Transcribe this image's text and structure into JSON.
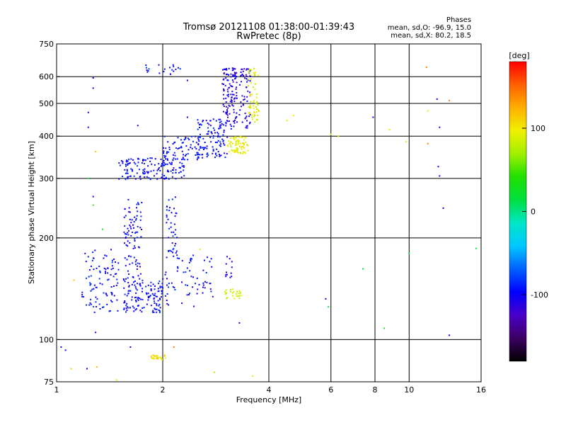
{
  "chart_data": {
    "type": "scatter",
    "title": "Tromsø 20121108 01:38:00-01:39:43",
    "subtitle": "RwPretec (8p)",
    "xlabel": "Frequency [MHz]",
    "ylabel": "Stationary phase Virtual Height [km]",
    "x_scale": "log",
    "y_scale": "log",
    "xlim": [
      1,
      16
    ],
    "ylim": [
      75,
      750
    ],
    "x_ticks": [
      1,
      2,
      4,
      6,
      8,
      10,
      16
    ],
    "y_ticks": [
      75,
      100,
      200,
      300,
      400,
      500,
      600,
      750
    ],
    "grid": true,
    "stats": {
      "header": "Phases",
      "line1": "mean, sd,O: -96.9, 15.0",
      "line2": "mean, sd,X:  80.2, 18.5"
    },
    "colorbar": {
      "label": "[deg]",
      "min": -180,
      "max": 180,
      "ticks": [
        100,
        0,
        -100
      ],
      "colors": [
        "#000000",
        "#3d0063",
        "#4a00c8",
        "#0000ff",
        "#0060ff",
        "#00c8ff",
        "#00e6c8",
        "#00e040",
        "#20e000",
        "#a0f000",
        "#f0f000",
        "#ffb000",
        "#ff6000",
        "#ff0000"
      ]
    },
    "clusters": [
      {
        "f_min": 1.18,
        "f_max": 1.5,
        "h_min": 120,
        "h_max": 185,
        "count": 95,
        "phase": -95
      },
      {
        "f_min": 1.55,
        "f_max": 2.0,
        "h_min": 120,
        "h_max": 150,
        "count": 130,
        "phase": -97
      },
      {
        "f_min": 1.55,
        "f_max": 1.75,
        "h_min": 150,
        "h_max": 260,
        "count": 90,
        "phase": -98
      },
      {
        "f_min": 2.0,
        "f_max": 2.8,
        "h_min": 125,
        "h_max": 180,
        "count": 70,
        "phase": -96
      },
      {
        "f_min": 2.05,
        "f_max": 2.2,
        "h_min": 180,
        "h_max": 270,
        "count": 40,
        "phase": -95
      },
      {
        "f_min": 1.5,
        "f_max": 2.3,
        "h_min": 298,
        "h_max": 345,
        "count": 150,
        "phase": -96
      },
      {
        "f_min": 2.0,
        "f_max": 2.6,
        "h_min": 340,
        "h_max": 400,
        "count": 70,
        "phase": -95
      },
      {
        "f_min": 2.5,
        "f_max": 3.05,
        "h_min": 345,
        "h_max": 450,
        "count": 110,
        "phase": -96
      },
      {
        "f_min": 2.95,
        "f_max": 3.25,
        "h_min": 420,
        "h_max": 640,
        "count": 120,
        "phase": -110
      },
      {
        "f_min": 3.3,
        "f_max": 3.55,
        "h_min": 420,
        "h_max": 640,
        "count": 60,
        "phase": -110
      },
      {
        "f_min": 3.05,
        "f_max": 3.5,
        "h_min": 355,
        "h_max": 400,
        "count": 70,
        "phase": 95
      },
      {
        "f_min": 3.5,
        "f_max": 3.75,
        "h_min": 440,
        "h_max": 640,
        "count": 60,
        "phase": 90
      },
      {
        "f_min": 1.85,
        "f_max": 2.05,
        "h_min": 87,
        "h_max": 90,
        "count": 30,
        "phase": 100
      },
      {
        "f_min": 3.0,
        "f_max": 3.35,
        "h_min": 132,
        "h_max": 142,
        "count": 25,
        "phase": 85
      },
      {
        "f_min": 3.0,
        "f_max": 3.15,
        "h_min": 150,
        "h_max": 182,
        "count": 12,
        "phase": -110
      },
      {
        "f_min": 1.75,
        "f_max": 2.25,
        "h_min": 610,
        "h_max": 650,
        "count": 20,
        "phase": -95
      }
    ],
    "points": [
      {
        "x": 1.03,
        "y": 95,
        "phase": -95
      },
      {
        "x": 1.06,
        "y": 93,
        "phase": -100
      },
      {
        "x": 1.1,
        "y": 82,
        "phase": 110
      },
      {
        "x": 1.22,
        "y": 82,
        "phase": -95
      },
      {
        "x": 1.3,
        "y": 83,
        "phase": 120
      },
      {
        "x": 1.48,
        "y": 76,
        "phase": 100
      },
      {
        "x": 1.23,
        "y": 470,
        "phase": -100
      },
      {
        "x": 1.23,
        "y": 425,
        "phase": -100
      },
      {
        "x": 1.27,
        "y": 595,
        "phase": -95
      },
      {
        "x": 1.27,
        "y": 555,
        "phase": -95
      },
      {
        "x": 1.29,
        "y": 360,
        "phase": 110
      },
      {
        "x": 1.23,
        "y": 300,
        "phase": 10
      },
      {
        "x": 1.27,
        "y": 265,
        "phase": -95
      },
      {
        "x": 1.27,
        "y": 250,
        "phase": 50
      },
      {
        "x": 1.35,
        "y": 212,
        "phase": 30
      },
      {
        "x": 1.12,
        "y": 150,
        "phase": 120
      },
      {
        "x": 1.29,
        "y": 105,
        "phase": -95
      },
      {
        "x": 1.62,
        "y": 95,
        "phase": -95
      },
      {
        "x": 2.8,
        "y": 80,
        "phase": 70
      },
      {
        "x": 3.6,
        "y": 78,
        "phase": 100
      },
      {
        "x": 3.3,
        "y": 112,
        "phase": -95
      },
      {
        "x": 4.7,
        "y": 460,
        "phase": 100
      },
      {
        "x": 4.5,
        "y": 445,
        "phase": 100
      },
      {
        "x": 6.0,
        "y": 405,
        "phase": 95
      },
      {
        "x": 6.3,
        "y": 400,
        "phase": 100
      },
      {
        "x": 5.8,
        "y": 132,
        "phase": -100
      },
      {
        "x": 5.9,
        "y": 125,
        "phase": 20
      },
      {
        "x": 7.4,
        "y": 162,
        "phase": 10
      },
      {
        "x": 7.9,
        "y": 455,
        "phase": -100
      },
      {
        "x": 8.5,
        "y": 108,
        "phase": 20
      },
      {
        "x": 8.8,
        "y": 418,
        "phase": 100
      },
      {
        "x": 9.8,
        "y": 385,
        "phase": 90
      },
      {
        "x": 10.0,
        "y": 180,
        "phase": 10
      },
      {
        "x": 11.2,
        "y": 640,
        "phase": 140
      },
      {
        "x": 11.3,
        "y": 475,
        "phase": 100
      },
      {
        "x": 11.3,
        "y": 380,
        "phase": 140
      },
      {
        "x": 12.0,
        "y": 515,
        "phase": -100
      },
      {
        "x": 12.2,
        "y": 425,
        "phase": -100
      },
      {
        "x": 12.1,
        "y": 325,
        "phase": -100
      },
      {
        "x": 12.2,
        "y": 305,
        "phase": -100
      },
      {
        "x": 12.5,
        "y": 245,
        "phase": -100
      },
      {
        "x": 13.0,
        "y": 510,
        "phase": 140
      },
      {
        "x": 13.0,
        "y": 103,
        "phase": -100
      },
      {
        "x": 15.5,
        "y": 186,
        "phase": 10
      },
      {
        "x": 2.15,
        "y": 95,
        "phase": 140
      },
      {
        "x": 2.35,
        "y": 455,
        "phase": -100
      },
      {
        "x": 2.35,
        "y": 585,
        "phase": -100
      },
      {
        "x": 1.7,
        "y": 430,
        "phase": -100
      },
      {
        "x": 2.55,
        "y": 185,
        "phase": 100
      }
    ]
  }
}
